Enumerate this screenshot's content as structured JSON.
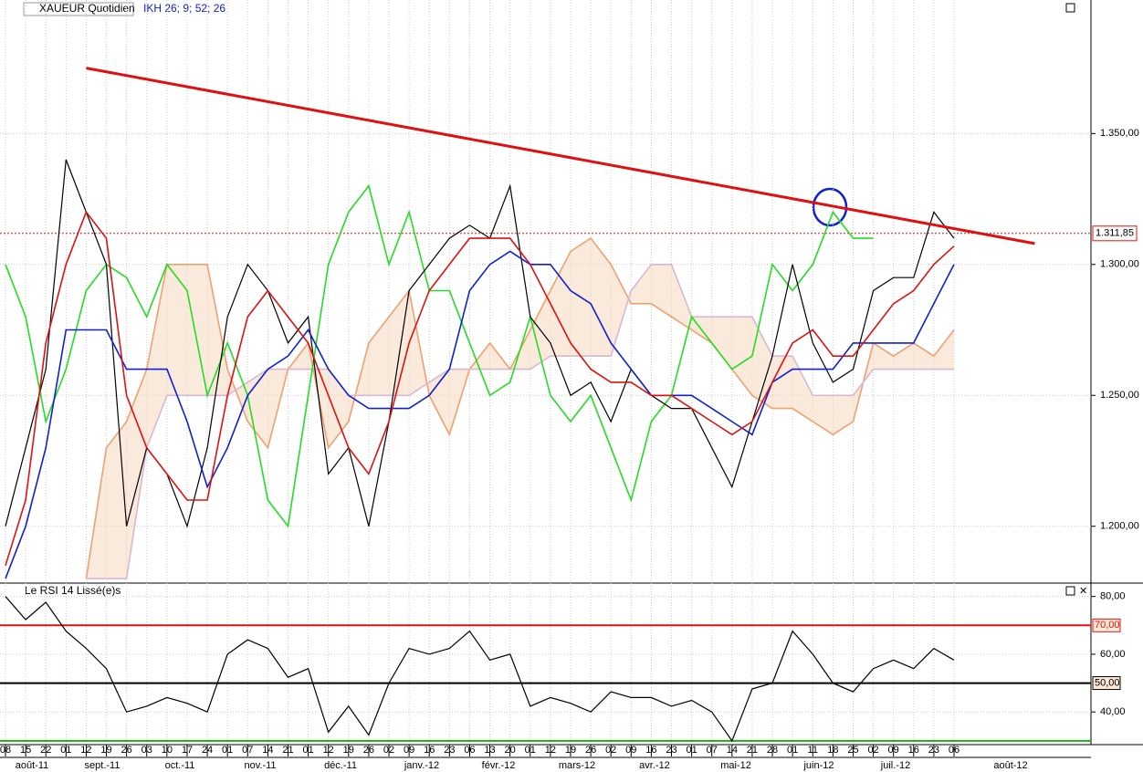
{
  "chart_data": [
    {
      "type": "line",
      "title": "XAUEUR Quotidien",
      "subtitle": "IKH 26; 9; 52; 26",
      "categories": [
        "08",
        "15",
        "22",
        "01",
        "12",
        "19",
        "26",
        "03",
        "10",
        "17",
        "24",
        "01",
        "07",
        "14",
        "21",
        "01",
        "12",
        "19",
        "26",
        "02",
        "09",
        "16",
        "23",
        "06",
        "13",
        "20",
        "01",
        "12",
        "19",
        "26",
        "02",
        "09",
        "16",
        "23",
        "01",
        "07",
        "14",
        "21",
        "28",
        "01",
        "11",
        "18",
        "25",
        "02",
        "09",
        "16",
        "23",
        "06"
      ],
      "months": [
        "août-11",
        "sept.-11",
        "oct.-11",
        "nov.-11",
        "déc.-11",
        "janv.-12",
        "févr.-12",
        "mars-12",
        "avr.-12",
        "mai-12",
        "juin-12",
        "juil.-12",
        "août-12"
      ],
      "series": [
        {
          "color": "#000000",
          "values": [
            1200,
            1230,
            1260,
            1340,
            1320,
            1300,
            1200,
            1230,
            1220,
            1200,
            1230,
            1280,
            1300,
            1290,
            1270,
            1280,
            1220,
            1230,
            1200,
            1240,
            1290,
            1300,
            1310,
            1315,
            1310,
            1330,
            1280,
            1270,
            1250,
            1255,
            1240,
            1260,
            1250,
            1245,
            1245,
            1230,
            1215,
            1240,
            1265,
            1300,
            1270,
            1255,
            1260,
            1290,
            1295,
            1295,
            1320,
            1310
          ]
        },
        {
          "color": "#e01010",
          "values": [
            1185,
            1210,
            1270,
            1300,
            1320,
            1310,
            1250,
            1230,
            1220,
            1210,
            1210,
            1250,
            1280,
            1290,
            1280,
            1270,
            1250,
            1230,
            1220,
            1240,
            1270,
            1290,
            1300,
            1310,
            1310,
            1310,
            1300,
            1285,
            1270,
            1260,
            1255,
            1255,
            1250,
            1250,
            1245,
            1240,
            1235,
            1240,
            1255,
            1270,
            1275,
            1265,
            1265,
            1275,
            1285,
            1290,
            1300,
            1307
          ]
        },
        {
          "color": "#1020d0",
          "values": [
            1180,
            1200,
            1230,
            1275,
            1275,
            1275,
            1260,
            1260,
            1260,
            1240,
            1215,
            1230,
            1250,
            1260,
            1265,
            1275,
            1260,
            1250,
            1245,
            1245,
            1245,
            1250,
            1260,
            1290,
            1300,
            1305,
            1300,
            1300,
            1290,
            1285,
            1270,
            1260,
            1250,
            1250,
            1250,
            1245,
            1240,
            1235,
            1255,
            1260,
            1260,
            1260,
            1270,
            1270,
            1270,
            1270,
            1285,
            1300
          ]
        },
        {
          "color": "#22dd22",
          "values": [
            1300,
            1280,
            1240,
            1260,
            1290,
            1300,
            1295,
            1280,
            1300,
            1290,
            1250,
            1270,
            1250,
            1210,
            1200,
            1250,
            1300,
            1320,
            1330,
            1300,
            1320,
            1290,
            1290,
            1270,
            1250,
            1255,
            1280,
            1250,
            1240,
            1250,
            1230,
            1210,
            1240,
            1250,
            1280,
            1270,
            1260,
            1265,
            1300,
            1290,
            1300,
            1320,
            1310,
            1310,
            null,
            null,
            null,
            null
          ]
        },
        {
          "color": "#f0a070",
          "values": [
            null,
            null,
            null,
            null,
            1180,
            1230,
            1240,
            1260,
            1300,
            1300,
            1300,
            1260,
            1240,
            1230,
            1260,
            1270,
            1230,
            1240,
            1270,
            1280,
            1290,
            1250,
            1235,
            1260,
            1270,
            1260,
            1275,
            1290,
            1305,
            1310,
            1300,
            1285,
            1285,
            1280,
            1275,
            1270,
            1260,
            1250,
            1245,
            1245,
            1240,
            1235,
            1240,
            1270,
            1265,
            1270,
            1265,
            1275
          ]
        },
        {
          "color": "#d8b8d0",
          "values": [
            null,
            null,
            null,
            null,
            1180,
            1180,
            1180,
            1230,
            1250,
            1250,
            1250,
            1250,
            1255,
            1260,
            1260,
            1260,
            1260,
            1250,
            1250,
            1250,
            1250,
            1255,
            1260,
            1260,
            1260,
            1260,
            1260,
            1265,
            1265,
            1265,
            1265,
            1290,
            1300,
            1300,
            1280,
            1280,
            1280,
            1280,
            1265,
            1265,
            1250,
            1250,
            1250,
            1260,
            1260,
            1260,
            1260,
            1260
          ]
        }
      ],
      "trendline": {
        "color": "#e01010",
        "x": [
          4,
          51
        ],
        "values": [
          1375,
          1308
        ]
      },
      "last": {
        "value": 1311.85,
        "label": "1.311,85"
      },
      "ylim": [
        1179,
        1401
      ],
      "yticks": [
        {
          "value": 1200,
          "label": "1.200,00"
        },
        {
          "value": 1250,
          "label": "1.250,00"
        },
        {
          "value": 1300,
          "label": "1.300,00"
        },
        {
          "value": 1350,
          "label": "1.350,00"
        }
      ]
    },
    {
      "type": "line",
      "title": "Le RSI 14 Lissé(e)s",
      "series": [
        {
          "color": "#000000",
          "values": [
            80,
            72,
            78,
            68,
            62,
            55,
            40,
            42,
            45,
            43,
            40,
            60,
            65,
            62,
            52,
            55,
            33,
            42,
            32,
            50,
            62,
            60,
            62,
            68,
            58,
            60,
            42,
            45,
            43,
            40,
            47,
            45,
            45,
            42,
            44,
            40,
            30,
            48,
            50,
            68,
            60,
            50,
            47,
            55,
            58,
            55,
            62,
            58
          ]
        }
      ],
      "levels": [
        {
          "value": 70,
          "label": "70,00",
          "color": "#e01010"
        },
        {
          "value": 50,
          "label": "50,00",
          "color": "#000000"
        },
        {
          "value": 30,
          "color": "#22aa22"
        }
      ],
      "ylim": [
        29,
        84
      ],
      "yticks": [
        {
          "value": 40,
          "label": "40,00"
        },
        {
          "value": 60,
          "label": "60,00"
        },
        {
          "value": 80,
          "label": "80,00"
        }
      ]
    }
  ]
}
